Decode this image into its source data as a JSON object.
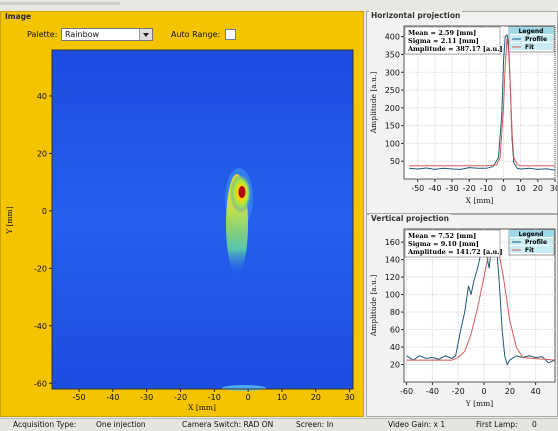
{
  "image_panel": {
    "title": "Image",
    "palette_label": "Palette:",
    "palette_value": "Rainbow",
    "auto_range_label": "Auto Range:",
    "x_axis_label": "X [mm]",
    "y_axis_label": "Y [mm]",
    "x_ticks": [
      "-50",
      "-40",
      "-30",
      "-20",
      "-10",
      "0",
      "10",
      "20",
      "30"
    ],
    "y_ticks": [
      "40",
      "20",
      "0",
      "-20",
      "-40",
      "-60"
    ],
    "colors": {
      "background": "#f4c400",
      "beam_base": "#1f52e6"
    }
  },
  "horizontal_projection": {
    "title": "Horizontal projection",
    "stats": {
      "mean": "Mean = 2.59 [mm]",
      "sigma": "Sigma = 2.11 [mm]",
      "amplitude": "Amplitude = 387.17 [a.u.]"
    },
    "legend": {
      "title": "Legend",
      "items": [
        "Profile",
        "Fit"
      ]
    },
    "x_axis_label": "X [mm]",
    "y_axis_label": "Amplitude [a.u.]",
    "x_ticks": [
      "-50",
      "-40",
      "-30",
      "-20",
      "-10",
      "0",
      "10",
      "20",
      "30"
    ],
    "y_ticks": [
      "400",
      "350",
      "300",
      "250",
      "200",
      "150",
      "100",
      "50"
    ]
  },
  "vertical_projection": {
    "title": "Vertical projection",
    "stats": {
      "mean": "Mean = 7.52 [mm]",
      "sigma": "Sigma = 9.10 [mm]",
      "amplitude": "Amplitude = 141.72 [a.u.]"
    },
    "legend": {
      "title": "Legend",
      "items": [
        "Profile",
        "Fit"
      ]
    },
    "x_axis_label": "Y [mm]",
    "y_axis_label": "Amplitude [a.u.]",
    "x_ticks": [
      "-60",
      "-40",
      "-20",
      "0",
      "20",
      "40"
    ],
    "y_ticks": [
      "160",
      "140",
      "120",
      "100",
      "80",
      "60",
      "40",
      "20"
    ]
  },
  "status_bar": {
    "acquisition_type_label": "Acquisition Type:",
    "acquisition_type_value": "One injection",
    "camera_switch": "Camera Switch: RAD ON",
    "screen": "Screen: In",
    "video_gain": "Video Gain: x 1",
    "first_lamp_label": "First Lamp:",
    "first_lamp_value": "0"
  },
  "chart_data": [
    {
      "type": "line",
      "series": [
        {
          "name": "Profile",
          "color": "#1e5a78",
          "x": [
            -55,
            -50,
            -45,
            -40,
            -35,
            -30,
            -25,
            -20,
            -15,
            -10,
            -6,
            -3,
            -1,
            0,
            1,
            2,
            3,
            4,
            5,
            6,
            8,
            10,
            15,
            20,
            25,
            30
          ],
          "y": [
            30,
            28,
            31,
            27,
            30,
            28,
            27,
            32,
            30,
            30,
            35,
            60,
            180,
            330,
            400,
            405,
            380,
            250,
            110,
            45,
            30,
            28,
            30,
            27,
            29,
            25
          ]
        },
        {
          "name": "Fit",
          "color": "#d85a5a",
          "x": [
            -55,
            -10,
            -4,
            -2,
            0,
            1,
            2,
            3,
            4,
            5,
            6,
            8,
            10,
            30
          ],
          "y": [
            37,
            37,
            40,
            60,
            200,
            320,
            395,
            360,
            250,
            130,
            60,
            40,
            37,
            37
          ]
        }
      ],
      "xlim": [
        -58,
        30
      ],
      "ylim": [
        0,
        430
      ]
    },
    {
      "type": "line",
      "series": [
        {
          "name": "Profile",
          "color": "#1e5a78",
          "x": [
            -60,
            -55,
            -50,
            -45,
            -40,
            -35,
            -30,
            -25,
            -22,
            -20,
            -18,
            -15,
            -12,
            -10,
            -8,
            -5,
            -2,
            0,
            2,
            4,
            6,
            8,
            10,
            12,
            14,
            16,
            18,
            20,
            25,
            30,
            35,
            40,
            45,
            50,
            55
          ],
          "y": [
            30,
            25,
            30,
            27,
            28,
            26,
            30,
            27,
            30,
            45,
            60,
            80,
            110,
            100,
            115,
            130,
            150,
            155,
            145,
            130,
            160,
            165,
            150,
            110,
            60,
            30,
            20,
            25,
            30,
            28,
            30,
            28,
            29,
            22,
            25
          ]
        },
        {
          "name": "Fit",
          "color": "#d85a5a",
          "x": [
            -60,
            -25,
            -20,
            -15,
            -10,
            -5,
            0,
            4,
            7,
            10,
            15,
            20,
            25,
            30,
            55
          ],
          "y": [
            25,
            25,
            28,
            35,
            55,
            85,
            120,
            150,
            167,
            160,
            120,
            70,
            40,
            28,
            25
          ]
        }
      ],
      "xlim": [
        -62,
        55
      ],
      "ylim": [
        0,
        175
      ]
    }
  ]
}
